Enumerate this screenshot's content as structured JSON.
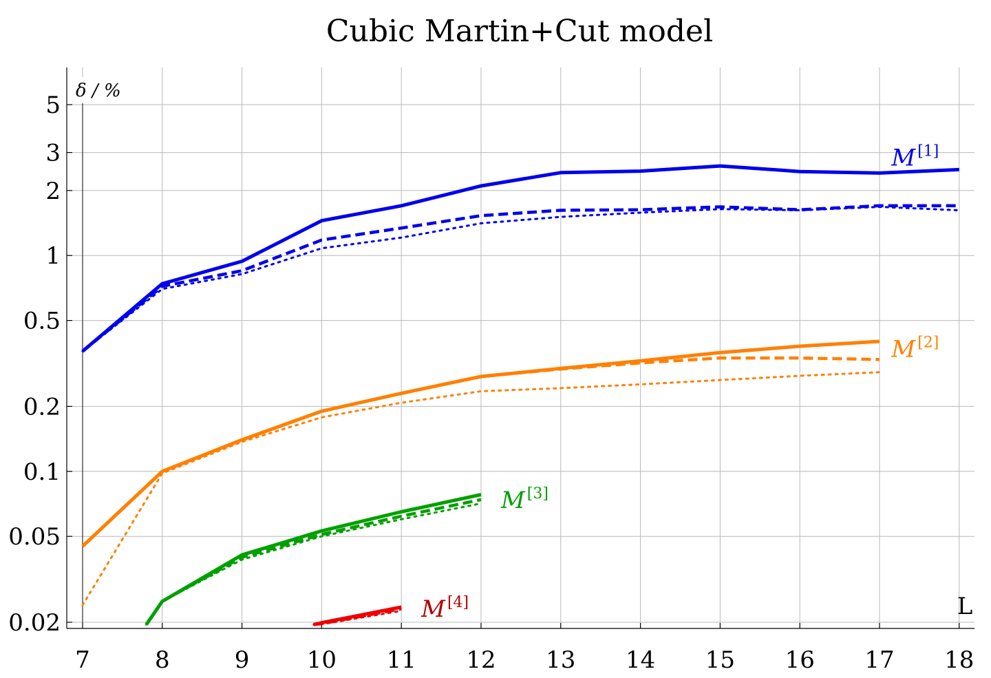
{
  "chart_data": {
    "type": "line",
    "title": "Cubic Martin+Cut model",
    "ylabel": "δ / %",
    "xlabel": "L",
    "yscale": "log",
    "xlim": [
      6.8,
      18.2
    ],
    "ylim": [
      0.0195,
      8.0
    ],
    "x_ticks": [
      7,
      8,
      9,
      10,
      11,
      12,
      13,
      14,
      15,
      16,
      17,
      18
    ],
    "y_ticks": [
      0.02,
      0.05,
      0.1,
      0.2,
      0.5,
      1,
      2,
      3,
      5
    ],
    "y_tick_labels": [
      "0.02",
      "0.05",
      "0.1",
      "0.2",
      "0.5",
      "1",
      "2",
      "3",
      "5"
    ],
    "x_tick_labels": [
      "7",
      "8",
      "9",
      "10",
      "11",
      "12",
      "13",
      "14",
      "15",
      "16",
      "17",
      "18"
    ],
    "grid": true,
    "groups": [
      {
        "label": "M",
        "label_sup": "[1]",
        "color": "#0000ee",
        "label_at": [
          17.15,
          2.85
        ],
        "series": [
          {
            "style": "solid",
            "x": [
              7,
              8,
              9,
              10,
              11,
              12,
              13,
              14,
              15,
              16,
              17,
              18
            ],
            "y": [
              0.36,
              0.74,
              0.94,
              1.45,
              1.7,
              2.1,
              2.42,
              2.46,
              2.6,
              2.45,
              2.41,
              2.5
            ]
          },
          {
            "style": "dashed",
            "x": [
              7,
              8,
              9,
              10,
              11,
              12,
              13,
              14,
              15,
              16,
              17,
              18
            ],
            "y": [
              0.36,
              0.72,
              0.85,
              1.18,
              1.34,
              1.53,
              1.62,
              1.63,
              1.68,
              1.63,
              1.7,
              1.7
            ]
          },
          {
            "style": "dotted",
            "x": [
              7,
              8,
              9,
              10,
              11,
              12,
              13,
              14,
              15,
              16,
              17,
              18
            ],
            "y": [
              0.36,
              0.7,
              0.82,
              1.08,
              1.21,
              1.41,
              1.51,
              1.58,
              1.64,
              1.62,
              1.68,
              1.62
            ]
          }
        ]
      },
      {
        "label": "M",
        "label_sup": "[2]",
        "color": "#ff8000",
        "label_at": [
          17.15,
          0.37
        ],
        "series": [
          {
            "style": "solid",
            "x": [
              7,
              8,
              9,
              10,
              11,
              12,
              13,
              14,
              15,
              16,
              17
            ],
            "y": [
              0.045,
              0.1,
              0.14,
              0.19,
              0.23,
              0.275,
              0.3,
              0.325,
              0.355,
              0.38,
              0.4
            ]
          },
          {
            "style": "dashed",
            "x": [
              7,
              8,
              9,
              10,
              11,
              12,
              13,
              14,
              15,
              16,
              17
            ],
            "y": [
              0.045,
              0.1,
              0.14,
              0.19,
              0.23,
              0.275,
              0.298,
              0.318,
              0.335,
              0.335,
              0.33
            ]
          },
          {
            "style": "dotted",
            "x": [
              7,
              8,
              9,
              10,
              11,
              12,
              13,
              14,
              15,
              16,
              17
            ],
            "y": [
              0.024,
              0.098,
              0.137,
              0.178,
              0.208,
              0.235,
              0.243,
              0.253,
              0.265,
              0.277,
              0.288
            ]
          }
        ]
      },
      {
        "label": "M",
        "label_sup": "[3]",
        "color": "#00a000",
        "label_at": [
          12.25,
          0.074
        ],
        "series": [
          {
            "style": "solid",
            "x": [
              7.8,
              8,
              9,
              10,
              11,
              12
            ],
            "y": [
              0.0195,
              0.025,
              0.041,
              0.053,
              0.065,
              0.078
            ]
          },
          {
            "style": "dashed",
            "x": [
              7.8,
              8,
              9,
              10,
              11,
              12
            ],
            "y": [
              0.0195,
              0.025,
              0.04,
              0.051,
              0.062,
              0.074
            ]
          },
          {
            "style": "dotted",
            "x": [
              7.8,
              8,
              9,
              10,
              11,
              12
            ],
            "y": [
              0.0195,
              0.025,
              0.039,
              0.05,
              0.06,
              0.071
            ]
          }
        ]
      },
      {
        "label": "M",
        "label_sup": "[4]",
        "color": "#ee0000",
        "label_color": "#b00000",
        "label_at": [
          11.25,
          0.0232
        ],
        "series": [
          {
            "style": "solid",
            "x": [
              9.9,
              10,
              11
            ],
            "y": [
              0.0195,
              0.0199,
              0.0235
            ]
          },
          {
            "style": "dashed",
            "x": [
              9.9,
              10,
              11
            ],
            "y": [
              0.0195,
              0.0197,
              0.0231
            ]
          },
          {
            "style": "dotted",
            "x": [
              9.9,
              10,
              11
            ],
            "y": [
              0.0195,
              0.0196,
              0.0226
            ]
          }
        ]
      }
    ]
  }
}
